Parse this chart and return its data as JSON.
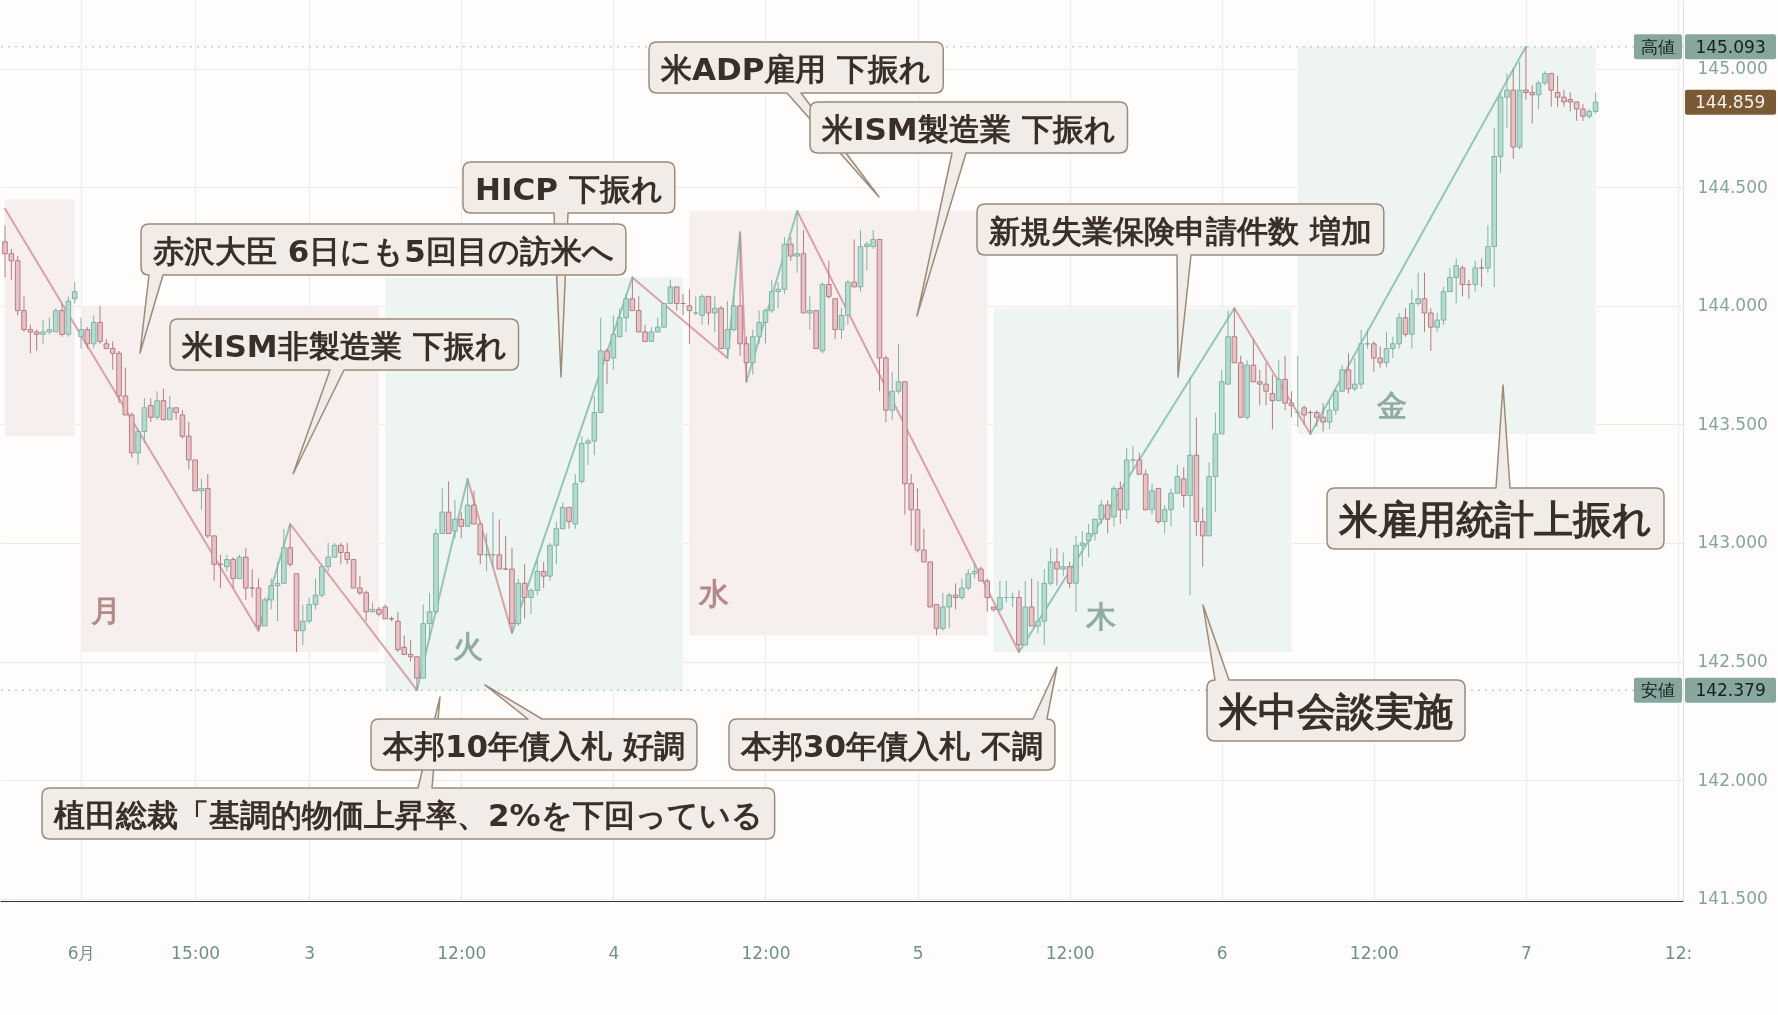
{
  "chart_data": {
    "type": "candlestick",
    "x": [
      "--06-02T00:00",
      "--06-02T00:30",
      "--06-02T01:00",
      "--06-02T01:30",
      "--06-02T02:00",
      "--06-02T02:30",
      "--06-02T03:00",
      "--06-02T03:30",
      "--06-02T04:00",
      "--06-02T04:30",
      "--06-02T05:00",
      "--06-02T05:30",
      "--06-02T06:00",
      "--06-02T06:30",
      "--06-02T07:00",
      "--06-02T07:30",
      "--06-02T08:00",
      "--06-02T08:30",
      "--06-02T09:00",
      "--06-02T09:30",
      "--06-02T10:00",
      "--06-02T10:30",
      "--06-02T11:00",
      "--06-02T11:30",
      "--06-02T12:00",
      "--06-02T12:30",
      "--06-02T13:00",
      "--06-02T13:30",
      "--06-02T14:00",
      "--06-02T14:30",
      "--06-02T15:00",
      "--06-02T15:30",
      "--06-02T16:00",
      "--06-02T16:30",
      "--06-02T17:00",
      "--06-02T17:30",
      "--06-02T18:00",
      "--06-02T18:30",
      "--06-02T19:00",
      "--06-02T19:30",
      "--06-02T20:00",
      "--06-02T20:30",
      "--06-02T21:00",
      "--06-02T21:30",
      "--06-02T22:00",
      "--06-02T22:30",
      "--06-02T23:00",
      "--06-02T23:30",
      "--06-03T00:00",
      "--06-03T00:30",
      "--06-03T01:00",
      "--06-03T01:30",
      "--06-03T02:00",
      "--06-03T02:30",
      "--06-03T03:00",
      "--06-03T03:30",
      "--06-03T04:00",
      "--06-03T04:30",
      "--06-03T05:00",
      "--06-03T05:30",
      "--06-03T06:00",
      "--06-03T06:30",
      "--06-03T07:00",
      "--06-03T07:30",
      "--06-03T08:00",
      "--06-03T08:30",
      "--06-03T09:00",
      "--06-03T09:30",
      "--06-03T10:00",
      "--06-03T10:30",
      "--06-03T11:00",
      "--06-03T11:30",
      "--06-03T12:00",
      "--06-03T12:30",
      "--06-03T13:00",
      "--06-03T13:30",
      "--06-03T14:00",
      "--06-03T14:30",
      "--06-03T15:00",
      "--06-03T15:30",
      "--06-03T16:00",
      "--06-03T16:30",
      "--06-03T17:00",
      "--06-03T17:30",
      "--06-03T18:00",
      "--06-03T18:30",
      "--06-03T19:00",
      "--06-03T19:30",
      "--06-03T20:00",
      "--06-03T20:30",
      "--06-03T21:00",
      "--06-03T21:30",
      "--06-03T22:00",
      "--06-03T22:30",
      "--06-03T23:00",
      "--06-03T23:30",
      "--06-04T00:00",
      "--06-04T00:30",
      "--06-04T01:00",
      "--06-04T01:30",
      "--06-04T02:00",
      "--06-04T02:30",
      "--06-04T03:00",
      "--06-04T03:30",
      "--06-04T04:00",
      "--06-04T04:30",
      "--06-04T05:00",
      "--06-04T05:30",
      "--06-04T06:00",
      "--06-04T06:30",
      "--06-04T07:00",
      "--06-04T07:30",
      "--06-04T08:00",
      "--06-04T08:30",
      "--06-04T09:00",
      "--06-04T09:30",
      "--06-04T10:00",
      "--06-04T10:30",
      "--06-04T11:00",
      "--06-04T11:30",
      "--06-04T12:00",
      "--06-04T12:30",
      "--06-04T13:00",
      "--06-04T13:30",
      "--06-04T14:00",
      "--06-04T14:30",
      "--06-04T15:00",
      "--06-04T15:30",
      "--06-04T16:00",
      "--06-04T16:30",
      "--06-04T17:00",
      "--06-04T17:30",
      "--06-04T18:00",
      "--06-04T18:30",
      "--06-04T19:00",
      "--06-04T19:30",
      "--06-04T20:00",
      "--06-04T20:30",
      "--06-04T21:00",
      "--06-04T21:30",
      "--06-04T22:00",
      "--06-04T22:30",
      "--06-04T23:00",
      "--06-04T23:30",
      "--06-05T00:00",
      "--06-05T00:30",
      "--06-05T01:00",
      "--06-05T01:30",
      "--06-05T02:00",
      "--06-05T02:30",
      "--06-05T03:00",
      "--06-05T03:30",
      "--06-05T04:00",
      "--06-05T04:30",
      "--06-05T05:00",
      "--06-05T05:30",
      "--06-05T06:00",
      "--06-05T06:30",
      "--06-05T07:00",
      "--06-05T07:30",
      "--06-05T08:00",
      "--06-05T08:30",
      "--06-05T09:00",
      "--06-05T09:30",
      "--06-05T10:00",
      "--06-05T10:30",
      "--06-05T11:00",
      "--06-05T11:30",
      "--06-05T12:00",
      "--06-05T12:30",
      "--06-05T13:00",
      "--06-05T13:30",
      "--06-05T14:00",
      "--06-05T14:30",
      "--06-05T15:00",
      "--06-05T15:30",
      "--06-05T16:00",
      "--06-05T16:30",
      "--06-05T17:00",
      "--06-05T17:30",
      "--06-05T18:00",
      "--06-05T18:30",
      "--06-05T19:00",
      "--06-05T19:30",
      "--06-05T20:00",
      "--06-05T20:30",
      "--06-05T21:00",
      "--06-05T21:30",
      "--06-05T22:00",
      "--06-05T22:30",
      "--06-05T23:00",
      "--06-05T23:30",
      "--06-06T00:00",
      "--06-06T00:30",
      "--06-06T01:00",
      "--06-06T01:30",
      "--06-06T02:00",
      "--06-06T02:30",
      "--06-06T03:00",
      "--06-06T03:30",
      "--06-06T04:00",
      "--06-06T04:30",
      "--06-06T05:00",
      "--06-06T05:30",
      "--06-06T06:00",
      "--06-06T06:30",
      "--06-06T07:00",
      "--06-06T07:30",
      "--06-06T08:00",
      "--06-06T08:30",
      "--06-06T09:00",
      "--06-06T09:30",
      "--06-06T10:00",
      "--06-06T10:30",
      "--06-06T11:00",
      "--06-06T11:30",
      "--06-06T12:00",
      "--06-06T12:30",
      "--06-06T13:00",
      "--06-06T13:30",
      "--06-06T14:00",
      "--06-06T14:30",
      "--06-06T15:00",
      "--06-06T15:30",
      "--06-06T16:00",
      "--06-06T16:30",
      "--06-06T17:00",
      "--06-06T17:30",
      "--06-06T18:00",
      "--06-06T18:30",
      "--06-06T19:00",
      "--06-06T19:30",
      "--06-06T20:00",
      "--06-06T20:30",
      "--06-06T21:00",
      "--06-06T21:30",
      "--06-06T22:00",
      "--06-06T22:30",
      "--06-06T23:00",
      "--06-06T23:30",
      "--06-07T00:00",
      "--06-07T00:30",
      "--06-07T01:00",
      "--06-07T01:30",
      "--06-07T02:00",
      "--06-07T02:30",
      "--06-07T03:00",
      "--06-07T03:30",
      "--06-07T04:00",
      "--06-07T04:30",
      "--06-07T05:00",
      "--06-07T05:30"
    ],
    "ohlc": [
      [
        144.27,
        144.34,
        144.12,
        144.22
      ],
      [
        144.22,
        144.24,
        144.11,
        144.19
      ],
      [
        144.19,
        144.21,
        143.96,
        143.98
      ],
      [
        143.98,
        144.04,
        143.89,
        143.9
      ],
      [
        143.9,
        143.92,
        143.8,
        143.89
      ],
      [
        143.89,
        143.9,
        143.81,
        143.88
      ],
      [
        143.88,
        143.94,
        143.84,
        143.89
      ],
      [
        143.89,
        143.95,
        143.88,
        143.9
      ],
      [
        143.89,
        143.99,
        143.89,
        143.98
      ],
      [
        143.98,
        144.01,
        143.87,
        143.88
      ],
      [
        143.88,
        144.04,
        143.87,
        144.02
      ],
      [
        144.03,
        144.1,
        144.01,
        144.06
      ],
      [
        143.87,
        143.95,
        143.82,
        143.9
      ],
      [
        143.9,
        143.91,
        143.82,
        143.84
      ],
      [
        143.84,
        143.96,
        143.82,
        143.93
      ],
      [
        143.93,
        144.0,
        143.84,
        143.85
      ],
      [
        143.84,
        143.86,
        143.82,
        143.82
      ],
      [
        143.82,
        143.85,
        143.73,
        143.8
      ],
      [
        143.8,
        143.81,
        143.59,
        143.62
      ],
      [
        143.62,
        143.74,
        143.54,
        143.54
      ],
      [
        143.54,
        143.55,
        143.36,
        143.38
      ],
      [
        143.38,
        143.48,
        143.33,
        143.47
      ],
      [
        143.47,
        143.61,
        143.42,
        143.57
      ],
      [
        143.58,
        143.61,
        143.51,
        143.53
      ],
      [
        143.53,
        143.64,
        143.52,
        143.6
      ],
      [
        143.6,
        143.65,
        143.52,
        143.52
      ],
      [
        143.52,
        143.62,
        143.52,
        143.57
      ],
      [
        143.57,
        143.57,
        143.52,
        143.55
      ],
      [
        143.54,
        143.56,
        143.44,
        143.45
      ],
      [
        143.45,
        143.51,
        143.31,
        143.35
      ],
      [
        143.35,
        143.35,
        143.22,
        143.22
      ],
      [
        143.22,
        143.27,
        143.14,
        143.23
      ],
      [
        143.23,
        143.29,
        143.02,
        143.03
      ],
      [
        143.03,
        143.03,
        142.84,
        142.91
      ],
      [
        142.91,
        142.95,
        142.81,
        142.91
      ],
      [
        142.9,
        142.95,
        142.88,
        142.93
      ],
      [
        142.93,
        142.94,
        142.81,
        142.85
      ],
      [
        142.85,
        142.95,
        142.85,
        142.94
      ],
      [
        142.94,
        142.98,
        142.76,
        142.81
      ],
      [
        142.81,
        142.89,
        142.77,
        142.81
      ],
      [
        142.81,
        142.85,
        142.63,
        142.65
      ],
      [
        142.65,
        142.77,
        142.65,
        142.76
      ],
      [
        142.76,
        142.85,
        142.72,
        142.82
      ],
      [
        142.82,
        142.92,
        142.67,
        142.83
      ],
      [
        142.83,
        143.06,
        142.83,
        142.98
      ],
      [
        142.98,
        143.08,
        142.9,
        142.91
      ],
      [
        142.87,
        142.87,
        142.54,
        142.63
      ],
      [
        142.63,
        142.74,
        142.57,
        142.67
      ],
      [
        142.67,
        142.77,
        142.66,
        142.74
      ],
      [
        142.74,
        142.85,
        142.72,
        142.78
      ],
      [
        142.78,
        142.9,
        142.77,
        142.9
      ],
      [
        142.9,
        143.0,
        142.88,
        142.94
      ],
      [
        142.94,
        143.0,
        142.94,
        142.99
      ],
      [
        142.99,
        143.0,
        142.91,
        142.96
      ],
      [
        142.96,
        143.0,
        142.91,
        142.93
      ],
      [
        142.93,
        142.93,
        142.81,
        142.81
      ],
      [
        142.81,
        142.86,
        142.78,
        142.79
      ],
      [
        142.79,
        142.8,
        142.67,
        142.71
      ],
      [
        142.71,
        142.75,
        142.71,
        142.72
      ],
      [
        142.72,
        142.73,
        142.69,
        142.7
      ],
      [
        142.73,
        142.74,
        142.68,
        142.68
      ],
      [
        142.68,
        142.69,
        142.67,
        142.68
      ],
      [
        142.67,
        142.71,
        142.54,
        142.55
      ],
      [
        142.56,
        142.61,
        142.53,
        142.53
      ],
      [
        142.53,
        142.59,
        142.5,
        142.52
      ],
      [
        142.52,
        142.52,
        142.379,
        142.43
      ],
      [
        142.43,
        142.74,
        142.43,
        142.66
      ],
      [
        142.66,
        142.79,
        142.59,
        142.71
      ],
      [
        142.71,
        143.06,
        142.7,
        143.04
      ],
      [
        143.04,
        143.23,
        143.04,
        143.13
      ],
      [
        143.13,
        143.26,
        143.04,
        143.04
      ],
      [
        143.05,
        143.18,
        143.02,
        143.1
      ],
      [
        143.1,
        143.13,
        143.02,
        143.07
      ],
      [
        143.07,
        143.27,
        143.07,
        143.16
      ],
      [
        143.16,
        143.22,
        143.08,
        143.08
      ],
      [
        143.08,
        143.09,
        142.91,
        142.95
      ],
      [
        142.95,
        143.04,
        142.88,
        142.95
      ],
      [
        142.95,
        143.13,
        142.9,
        142.95
      ],
      [
        142.95,
        143.1,
        142.89,
        142.89
      ],
      [
        142.89,
        143.03,
        142.89,
        142.89
      ],
      [
        142.89,
        142.98,
        142.62,
        142.66
      ],
      [
        142.66,
        142.85,
        142.65,
        142.83
      ],
      [
        142.83,
        142.91,
        142.68,
        142.77
      ],
      [
        142.77,
        142.81,
        142.7,
        142.8
      ],
      [
        142.8,
        142.93,
        142.78,
        142.88
      ],
      [
        142.88,
        142.92,
        142.81,
        142.86
      ],
      [
        142.86,
        143.0,
        142.84,
        142.99
      ],
      [
        142.99,
        143.09,
        142.91,
        143.06
      ],
      [
        143.06,
        143.17,
        143.06,
        143.15
      ],
      [
        143.15,
        143.15,
        143.06,
        143.09
      ],
      [
        143.08,
        143.29,
        143.06,
        143.25
      ],
      [
        143.26,
        143.45,
        143.25,
        143.42
      ],
      [
        143.42,
        143.44,
        143.33,
        143.43
      ],
      [
        143.43,
        143.62,
        143.37,
        143.55
      ],
      [
        143.55,
        143.95,
        143.55,
        143.81
      ],
      [
        143.81,
        143.82,
        143.67,
        143.77
      ],
      [
        143.78,
        143.96,
        143.73,
        143.88
      ],
      [
        143.87,
        143.99,
        143.87,
        143.95
      ],
      [
        143.95,
        144.05,
        143.89,
        144.03
      ],
      [
        144.03,
        144.12,
        143.98,
        143.98
      ],
      [
        143.98,
        144.04,
        143.89,
        143.89
      ],
      [
        143.89,
        143.92,
        143.85,
        143.85
      ],
      [
        143.85,
        143.91,
        143.85,
        143.89
      ],
      [
        143.89,
        143.95,
        143.89,
        143.91
      ],
      [
        143.91,
        144.01,
        143.91,
        144.01
      ],
      [
        144.01,
        144.11,
        144.01,
        144.08
      ],
      [
        144.08,
        144.08,
        143.98,
        144.01
      ],
      [
        144.01,
        144.05,
        143.96,
        144.01
      ],
      [
        144.0,
        144.07,
        143.84,
        143.98
      ],
      [
        143.97,
        144.04,
        143.96,
        143.97
      ],
      [
        143.96,
        144.05,
        143.92,
        144.04
      ],
      [
        144.04,
        144.04,
        143.92,
        143.97
      ],
      [
        143.97,
        144.04,
        143.89,
        143.99
      ],
      [
        143.99,
        144.0,
        143.82,
        143.82
      ],
      [
        143.82,
        144.02,
        143.78,
        143.9
      ],
      [
        143.9,
        144.04,
        143.89,
        144.0
      ],
      [
        144.0,
        144.31,
        143.79,
        143.84
      ],
      [
        143.84,
        143.87,
        143.68,
        143.76
      ],
      [
        143.76,
        143.9,
        143.71,
        143.87
      ],
      [
        143.87,
        143.98,
        143.84,
        143.93
      ],
      [
        143.93,
        143.99,
        143.84,
        143.98
      ],
      [
        143.98,
        144.11,
        143.97,
        144.06
      ],
      [
        144.06,
        144.1,
        143.99,
        144.07
      ],
      [
        144.07,
        144.29,
        144.05,
        144.26
      ],
      [
        144.26,
        144.29,
        144.19,
        144.21
      ],
      [
        144.21,
        144.4,
        144.14,
        144.22
      ],
      [
        144.22,
        144.32,
        143.97,
        143.97
      ],
      [
        143.97,
        144.04,
        143.9,
        143.98
      ],
      [
        143.98,
        143.98,
        143.82,
        143.82
      ],
      [
        143.81,
        144.1,
        143.8,
        144.09
      ],
      [
        144.09,
        144.19,
        144.03,
        144.04
      ],
      [
        144.03,
        144.03,
        143.86,
        143.9
      ],
      [
        143.9,
        143.99,
        143.86,
        143.96
      ],
      [
        143.96,
        144.11,
        143.92,
        144.1
      ],
      [
        144.1,
        144.28,
        144.08,
        144.08
      ],
      [
        144.08,
        144.32,
        144.06,
        144.25
      ],
      [
        144.25,
        144.27,
        144.15,
        144.26
      ],
      [
        144.25,
        144.32,
        144.24,
        144.28
      ],
      [
        144.28,
        144.28,
        143.64,
        143.78
      ],
      [
        143.78,
        143.79,
        143.51,
        143.56
      ],
      [
        143.56,
        143.72,
        143.52,
        143.64
      ],
      [
        143.64,
        143.84,
        143.63,
        143.68
      ],
      [
        143.68,
        143.68,
        143.12,
        143.25
      ],
      [
        143.25,
        143.29,
        142.99,
        143.14
      ],
      [
        143.14,
        143.23,
        142.96,
        142.97
      ],
      [
        142.97,
        143.06,
        142.92,
        142.92
      ],
      [
        142.92,
        142.92,
        142.73,
        142.73
      ],
      [
        142.74,
        142.74,
        142.61,
        142.64
      ],
      [
        142.64,
        142.79,
        142.63,
        142.73
      ],
      [
        142.73,
        142.79,
        142.64,
        142.78
      ],
      [
        142.78,
        142.83,
        142.72,
        142.77
      ],
      [
        142.77,
        142.85,
        142.76,
        142.81
      ],
      [
        142.81,
        142.89,
        142.8,
        142.87
      ],
      [
        142.87,
        142.92,
        142.85,
        142.88
      ],
      [
        142.89,
        142.9,
        142.84,
        142.84
      ],
      [
        142.84,
        142.85,
        142.71,
        142.77
      ],
      [
        142.73,
        142.73,
        142.71,
        142.72
      ],
      [
        142.72,
        142.84,
        142.71,
        142.77
      ],
      [
        142.77,
        142.84,
        142.75,
        142.77
      ],
      [
        142.77,
        142.79,
        142.73,
        142.77
      ],
      [
        142.77,
        142.8,
        142.54,
        142.57
      ],
      [
        142.57,
        142.84,
        142.57,
        142.73
      ],
      [
        142.73,
        142.85,
        142.65,
        142.65
      ],
      [
        142.65,
        142.84,
        142.62,
        142.67
      ],
      [
        142.67,
        142.89,
        142.57,
        142.83
      ],
      [
        142.83,
        142.98,
        142.82,
        142.92
      ],
      [
        142.92,
        142.98,
        142.82,
        142.89
      ],
      [
        142.89,
        142.96,
        142.86,
        142.9
      ],
      [
        142.9,
        142.92,
        142.81,
        142.83
      ],
      [
        142.83,
        143.03,
        142.71,
        142.99
      ],
      [
        142.99,
        143.05,
        142.9,
        143.0
      ],
      [
        143.01,
        143.08,
        142.94,
        143.04
      ],
      [
        143.04,
        143.1,
        143.01,
        143.1
      ],
      [
        143.1,
        143.18,
        143.08,
        143.16
      ],
      [
        143.16,
        143.18,
        143.04,
        143.1
      ],
      [
        143.11,
        143.24,
        143.07,
        143.23
      ],
      [
        143.23,
        143.26,
        143.08,
        143.14
      ],
      [
        143.14,
        143.4,
        143.1,
        143.35
      ],
      [
        143.35,
        143.41,
        143.31,
        143.35
      ],
      [
        143.35,
        143.38,
        143.29,
        143.29
      ],
      [
        143.29,
        143.31,
        143.14,
        143.14
      ],
      [
        143.14,
        143.25,
        143.12,
        143.22
      ],
      [
        143.23,
        143.23,
        143.08,
        143.09
      ],
      [
        143.09,
        143.16,
        143.04,
        143.14
      ],
      [
        143.14,
        143.23,
        143.07,
        143.21
      ],
      [
        143.21,
        143.33,
        143.21,
        143.28
      ],
      [
        143.27,
        143.32,
        143.15,
        143.2
      ],
      [
        143.2,
        143.7,
        142.78,
        143.37
      ],
      [
        143.37,
        143.53,
        143.03,
        143.09
      ],
      [
        143.09,
        143.15,
        142.9,
        143.03
      ],
      [
        143.03,
        143.34,
        143.03,
        143.28
      ],
      [
        143.28,
        143.55,
        143.13,
        143.46
      ],
      [
        143.46,
        143.73,
        143.46,
        143.68
      ],
      [
        143.67,
        143.98,
        143.67,
        143.87
      ],
      [
        143.87,
        143.99,
        143.76,
        143.76
      ],
      [
        143.76,
        143.79,
        143.53,
        143.53
      ],
      [
        143.53,
        143.77,
        143.52,
        143.75
      ],
      [
        143.75,
        143.86,
        143.68,
        143.68
      ],
      [
        143.68,
        143.73,
        143.58,
        143.67
      ],
      [
        143.67,
        143.76,
        143.58,
        143.64
      ],
      [
        143.63,
        143.71,
        143.48,
        143.6
      ],
      [
        143.6,
        143.77,
        143.6,
        143.69
      ],
      [
        143.69,
        143.79,
        143.56,
        143.59
      ],
      [
        143.59,
        143.64,
        143.53,
        143.58
      ],
      [
        143.55,
        143.79,
        143.49,
        143.55
      ],
      [
        143.57,
        143.58,
        143.5,
        143.54
      ],
      [
        143.55,
        143.56,
        143.46,
        143.55
      ],
      [
        143.55,
        143.56,
        143.49,
        143.53
      ],
      [
        143.53,
        143.59,
        143.47,
        143.51
      ],
      [
        143.51,
        143.6,
        143.48,
        143.56
      ],
      [
        143.56,
        143.65,
        143.54,
        143.64
      ],
      [
        143.64,
        143.75,
        143.64,
        143.73
      ],
      [
        143.73,
        143.8,
        143.63,
        143.65
      ],
      [
        143.65,
        143.78,
        143.64,
        143.67
      ],
      [
        143.67,
        143.9,
        143.65,
        143.84
      ],
      [
        143.84,
        143.9,
        143.82,
        143.84
      ],
      [
        143.84,
        143.85,
        143.72,
        143.78
      ],
      [
        143.78,
        143.83,
        143.74,
        143.76
      ],
      [
        143.76,
        143.89,
        143.74,
        143.82
      ],
      [
        143.82,
        143.87,
        143.78,
        143.84
      ],
      [
        143.84,
        143.97,
        143.82,
        143.95
      ],
      [
        143.95,
        143.99,
        143.87,
        143.88
      ],
      [
        143.88,
        144.07,
        143.82,
        144.01
      ],
      [
        144.01,
        144.14,
        144.0,
        144.03
      ],
      [
        144.03,
        144.14,
        143.89,
        143.97
      ],
      [
        143.97,
        143.99,
        143.81,
        143.91
      ],
      [
        143.91,
        143.97,
        143.89,
        143.94
      ],
      [
        143.94,
        144.08,
        143.92,
        144.06
      ],
      [
        144.06,
        144.16,
        144.06,
        144.12
      ],
      [
        144.12,
        144.2,
        144.01,
        144.17
      ],
      [
        144.16,
        144.17,
        144.04,
        144.09
      ],
      [
        144.09,
        144.11,
        144.03,
        144.09
      ],
      [
        144.09,
        144.19,
        144.06,
        144.16
      ],
      [
        144.16,
        144.2,
        144.08,
        144.16
      ],
      [
        144.16,
        144.34,
        144.14,
        144.25
      ],
      [
        144.25,
        144.75,
        144.08,
        144.63
      ],
      [
        144.63,
        144.9,
        144.56,
        144.88
      ],
      [
        144.88,
        144.98,
        144.75,
        144.91
      ],
      [
        144.91,
        145.0,
        144.62,
        144.67
      ],
      [
        144.67,
        145.03,
        144.66,
        144.91
      ],
      [
        144.91,
        145.093,
        144.87,
        144.9
      ],
      [
        144.9,
        144.93,
        144.77,
        144.89
      ],
      [
        144.89,
        144.95,
        144.83,
        144.94
      ],
      [
        144.94,
        144.99,
        144.93,
        144.98
      ],
      [
        144.98,
        144.98,
        144.84,
        144.91
      ],
      [
        144.9,
        144.97,
        144.84,
        144.88
      ],
      [
        144.88,
        144.91,
        144.84,
        144.86
      ],
      [
        144.87,
        144.9,
        144.82,
        144.86
      ],
      [
        144.86,
        144.86,
        144.78,
        144.83
      ],
      [
        144.83,
        144.85,
        144.78,
        144.8
      ],
      [
        144.8,
        144.83,
        144.79,
        144.82
      ],
      [
        144.82,
        144.9,
        144.81,
        144.859
      ]
    ],
    "colors": [
      "#e6c3c6",
      "#e6c3c6",
      "#e6c3c6",
      "#e6c3c6",
      "#e6c3c6",
      "#e6c3c6",
      "#b3dbd0",
      "#b3dbd0",
      "#b3dbd0",
      "#e6c3c6",
      "#b3dbd0",
      "#b3dbd0",
      "#b3dbd0",
      "#e6c3c6",
      "#b3dbd0",
      "#e6c3c6",
      "#e6c3c6",
      "#e6c3c6",
      "#e6c3c6",
      "#e6c3c6",
      "#e6c3c6",
      "#b3dbd0",
      "#b3dbd0",
      "#e6c3c6",
      "#b3dbd0",
      "#e6c3c6",
      "#b3dbd0",
      "#e6c3c6",
      "#e6c3c6",
      "#e6c3c6",
      "#e6c3c6",
      "#b3dbd0",
      "#e6c3c6",
      "#e6c3c6",
      "#b67c81",
      "#b3dbd0",
      "#e6c3c6",
      "#b3dbd0",
      "#e6c3c6",
      "#b67c81",
      "#e6c3c6",
      "#b3dbd0",
      "#b3dbd0",
      "#b3dbd0",
      "#b3dbd0",
      "#e6c3c6",
      "#e6c3c6",
      "#b3dbd0",
      "#b3dbd0",
      "#b3dbd0",
      "#b3dbd0",
      "#b3dbd0",
      "#b3dbd0",
      "#e6c3c6",
      "#e6c3c6",
      "#e6c3c6",
      "#e6c3c6",
      "#e6c3c6",
      "#b3dbd0",
      "#e6c3c6",
      "#e6c3c6",
      "#b67c81",
      "#e6c3c6",
      "#e6c3c6",
      "#e6c3c6",
      "#e6c3c6",
      "#b3dbd0",
      "#b3dbd0",
      "#b3dbd0",
      "#b3dbd0",
      "#e6c3c6",
      "#b3dbd0",
      "#e6c3c6",
      "#b3dbd0",
      "#e6c3c6",
      "#e6c3c6",
      "#80b3a4",
      "#80b3a4",
      "#e6c3c6",
      "#b67c81",
      "#e6c3c6",
      "#b3dbd0",
      "#e6c3c6",
      "#b3dbd0",
      "#b3dbd0",
      "#e6c3c6",
      "#b3dbd0",
      "#b3dbd0",
      "#b3dbd0",
      "#e6c3c6",
      "#b3dbd0",
      "#b3dbd0",
      "#b3dbd0",
      "#b3dbd0",
      "#b3dbd0",
      "#e6c3c6",
      "#b3dbd0",
      "#b3dbd0",
      "#b3dbd0",
      "#e6c3c6",
      "#e6c3c6",
      "#e6c3c6",
      "#b3dbd0",
      "#b3dbd0",
      "#b3dbd0",
      "#b3dbd0",
      "#e6c3c6",
      "#b67c81",
      "#e6c3c6",
      "#80b3a4",
      "#b3dbd0",
      "#e6c3c6",
      "#b3dbd0",
      "#e6c3c6",
      "#b3dbd0",
      "#b3dbd0",
      "#e6c3c6",
      "#e6c3c6",
      "#b3dbd0",
      "#b3dbd0",
      "#b3dbd0",
      "#b3dbd0",
      "#b3dbd0",
      "#b3dbd0",
      "#e6c3c6",
      "#b3dbd0",
      "#e6c3c6",
      "#b3dbd0",
      "#e6c3c6",
      "#b3dbd0",
      "#e6c3c6",
      "#e6c3c6",
      "#b3dbd0",
      "#b3dbd0",
      "#e6c3c6",
      "#b3dbd0",
      "#b3dbd0",
      "#b3dbd0",
      "#e6c3c6",
      "#e6c3c6",
      "#b3dbd0",
      "#b3dbd0",
      "#e6c3c6",
      "#e6c3c6",
      "#e6c3c6",
      "#e6c3c6",
      "#e6c3c6",
      "#e6c3c6",
      "#b3dbd0",
      "#b3dbd0",
      "#e6c3c6",
      "#b3dbd0",
      "#b3dbd0",
      "#b3dbd0",
      "#e6c3c6",
      "#e6c3c6",
      "#e6c3c6",
      "#b3dbd0",
      "#80b3a4",
      "#80b3a4",
      "#e6c3c6",
      "#b3dbd0",
      "#e6c3c6",
      "#b3dbd0",
      "#b3dbd0",
      "#b3dbd0",
      "#e6c3c6",
      "#b3dbd0",
      "#e6c3c6",
      "#b3dbd0",
      "#b3dbd0",
      "#b3dbd0",
      "#b3dbd0",
      "#b3dbd0",
      "#e6c3c6",
      "#b3dbd0",
      "#e6c3c6",
      "#b3dbd0",
      "#80b3a4",
      "#e6c3c6",
      "#e6c3c6",
      "#b3dbd0",
      "#e6c3c6",
      "#b3dbd0",
      "#b3dbd0",
      "#b3dbd0",
      "#e6c3c6",
      "#b3dbd0",
      "#e6c3c6",
      "#e6c3c6",
      "#b3dbd0",
      "#b3dbd0",
      "#b3dbd0",
      "#b3dbd0",
      "#e6c3c6",
      "#e6c3c6",
      "#b3dbd0",
      "#e6c3c6",
      "#e6c3c6",
      "#e6c3c6",
      "#e6c3c6",
      "#b3dbd0",
      "#e6c3c6",
      "#e6c3c6",
      "#80b3a4",
      "#e6c3c6",
      "#b67c81",
      "#e6c3c6",
      "#e6c3c6",
      "#b3dbd0",
      "#b3dbd0",
      "#b3dbd0",
      "#e6c3c6",
      "#b3dbd0",
      "#b3dbd0",
      "#80b3a4",
      "#e6c3c6",
      "#e6c3c6",
      "#b3dbd0",
      "#b3dbd0",
      "#b3dbd0",
      "#e6c3c6",
      "#b3dbd0",
      "#b3dbd0",
      "#e6c3c6",
      "#e6c3c6",
      "#b3dbd0",
      "#b3dbd0",
      "#b3dbd0",
      "#b3dbd0",
      "#e6c3c6",
      "#b67c81",
      "#b3dbd0",
      "#b67c81",
      "#b3dbd0",
      "#b3dbd0",
      "#b3dbd0",
      "#b3dbd0",
      "#e6c3c6",
      "#b3dbd0",
      "#e6c3c6",
      "#e6c3c6",
      "#b3dbd0",
      "#b3dbd0",
      "#e6c3c6",
      "#e6c3c6",
      "#e6c3c6",
      "#e6c3c6",
      "#e6c3c6",
      "#e6c3c6",
      "#b3dbd0",
      "#b3dbd0"
    ],
    "series": [
      {
        "type": "bar",
        "x": [
          "--06-02T02:45",
          "--06-02T17:45",
          "--06-03T17:45",
          "--06-04T17:45",
          "--06-05T17:45",
          "--06-06T17:45"
        ],
        "base": [
          143.45,
          142.54,
          142.379,
          142.61,
          142.54,
          143.46
        ],
        "values": [
          1.0,
          1.46,
          1.741,
          1.79,
          1.45,
          1.633
        ],
        "colors": [
          "#f7eeee",
          "#f7eeee",
          "#edf4f2",
          "#f7eeee",
          "#edf4f2",
          "#edf4f2"
        ],
        "value_labels": [
          null,
          "月",
          "火",
          "水",
          "木",
          "金"
        ]
      },
      {
        "type": "line",
        "x": [
          "--06-02T00:00",
          "--06-02T20:00",
          "--06-02T21:00",
          "--06-02T22:30",
          "--06-03T08:30",
          "--06-03T10:00",
          "--06-03T12:30",
          "--06-03T16:00",
          "--06-03T21:00",
          "--06-04T01:30",
          "--06-04T09:00",
          "--06-04T09:30",
          "--06-04T10:00",
          "--06-04T10:30",
          "--06-04T12:00",
          "--06-04T14:30",
          "--06-05T08:00",
          "--06-05T18:00",
          "--06-06T01:00",
          "--06-06T07:00"
        ],
        "values": [
          144.41,
          142.63,
          null,
          143.08,
          142.379,
          null,
          143.27,
          142.62,
          null,
          144.12,
          143.78,
          null,
          144.31,
          143.68,
          null,
          144.4,
          142.54,
          null,
          143.99,
          143.46
        ],
        "color": "#d8a2a7"
      },
      {
        "type": "line",
        "x": [
          "--06-02T20:00",
          "--06-02T22:30",
          "--06-03T03:00",
          "--06-03T08:30",
          "--06-03T12:30",
          "--06-03T14:00",
          "--06-03T16:00",
          "--06-04T01:30",
          "--06-04T05:00",
          "--06-04T09:00",
          "--06-04T10:00",
          "--06-04T10:15",
          "--06-04T10:30",
          "--06-04T14:30",
          "--06-04T22:00",
          "--06-05T08:00",
          "--06-06T01:00",
          "--06-06T04:00",
          "--06-06T07:00",
          "--06-07T00:00"
        ],
        "values": [
          142.63,
          143.08,
          null,
          142.379,
          143.27,
          null,
          142.62,
          144.12,
          null,
          143.78,
          144.31,
          null,
          143.68,
          144.4,
          null,
          142.54,
          143.99,
          null,
          143.46,
          145.093
        ],
        "color": "#94c5b9"
      }
    ],
    "xlim": [
      "--06-02T00:00",
      "--06-07T12:00"
    ],
    "xticks": [
      {
        "value": "--06-02T06:00",
        "label": "6月"
      },
      {
        "value": "--06-02T15:00",
        "label": "15:00"
      },
      {
        "value": "--06-03T00:00",
        "label": "3"
      },
      {
        "value": "--06-03T12:00",
        "label": "12:00"
      },
      {
        "value": "--06-04T00:00",
        "label": "4"
      },
      {
        "value": "--06-04T12:00",
        "label": "12:00"
      },
      {
        "value": "--06-05T00:00",
        "label": "5"
      },
      {
        "value": "--06-05T12:00",
        "label": "12:00"
      },
      {
        "value": "--06-06T00:00",
        "label": "6"
      },
      {
        "value": "--06-06T12:00",
        "label": "12:00"
      },
      {
        "value": "--06-07T00:00",
        "label": "7"
      },
      {
        "value": "--06-07T12:00",
        "label": "12:"
      }
    ],
    "ylim": [
      141.49,
      145.29
    ],
    "yticks": [
      {
        "value": 141.5,
        "label": "141.500"
      },
      {
        "value": 142,
        "label": "142.000"
      },
      {
        "value": 142.5,
        "label": "142.500"
      },
      {
        "value": 143,
        "label": "143.000"
      },
      {
        "value": 143.5,
        "label": "143.500"
      },
      {
        "value": 144,
        "label": "144.000"
      },
      {
        "value": 144.5,
        "label": "144.500"
      },
      {
        "value": 145,
        "label": "145.000"
      }
    ],
    "grid": true,
    "ref_lines": [
      {
        "axis": "y",
        "value": 145.093,
        "label": "高値 145.093",
        "color": "#86a69e",
        "line_style": "dotted"
      },
      {
        "axis": "y",
        "value": 142.379,
        "label": "安値 142.379",
        "color": "#86a69e",
        "line_style": "dotted"
      }
    ],
    "annotations": [
      "米ADP雇用 下振れ",
      "米ISM製造業 下振れ",
      "HICP 下振れ",
      "赤沢大臣 6日にも5回目の訪米へ",
      "米ISM非製造業 下振れ",
      "新規失業保険申請件数 増加",
      "米雇用統計上振れ",
      "米中会談実施",
      "植田総裁「基調的物価上昇率、2%を下回っている",
      "本邦10年債入札 好調",
      "本邦30年債入札 不調",
      "144.859"
    ]
  }
}
